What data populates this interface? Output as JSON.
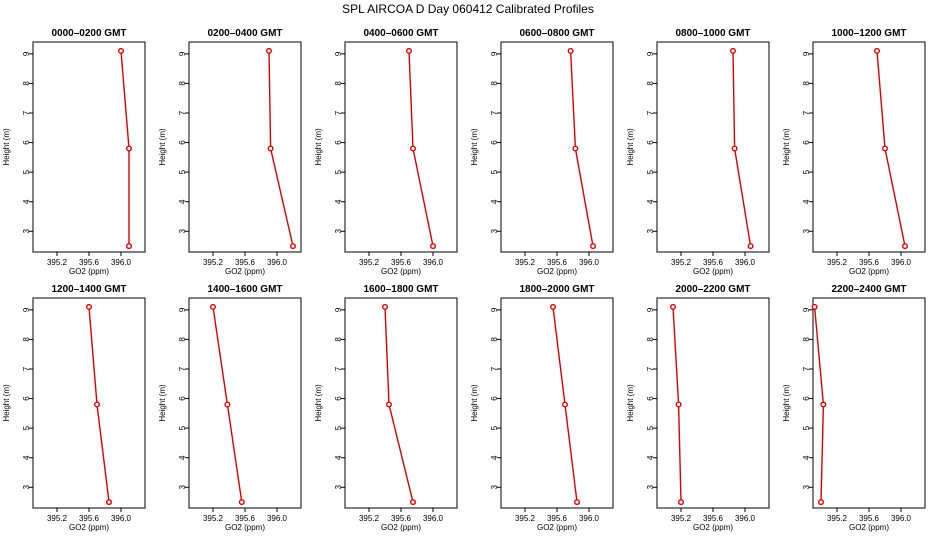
{
  "figure": {
    "title": "SPL AIRCOA D  Day 060412  Calibrated Profiles"
  },
  "chart_data": [
    {
      "type": "line",
      "title": "0000–0200 GMT",
      "xlabel": "GO2 (ppm)",
      "ylabel": "Height (m)",
      "xlim": [
        394.9,
        396.3
      ],
      "ylim": [
        2.3,
        9.4
      ],
      "xticks": [
        395.2,
        395.6,
        396.0
      ],
      "xtick_labels": [
        "395.2",
        "395.6",
        "396.0"
      ],
      "yticks": [
        3,
        4,
        5,
        6,
        7,
        8,
        9
      ],
      "series": [
        {
          "x": [
            396.0,
            396.1,
            396.1
          ],
          "y": [
            9.1,
            5.8,
            2.5
          ],
          "color": "#dd0000"
        }
      ]
    },
    {
      "type": "line",
      "title": "0200–0400 GMT",
      "xlabel": "GO2 (ppm)",
      "ylabel": "Height (m)",
      "xlim": [
        394.9,
        396.3
      ],
      "ylim": [
        2.3,
        9.4
      ],
      "xticks": [
        395.2,
        395.6,
        396.0
      ],
      "xtick_labels": [
        "395.2",
        "395.6",
        "396.0"
      ],
      "yticks": [
        3,
        4,
        5,
        6,
        7,
        8,
        9
      ],
      "series": [
        {
          "x": [
            395.9,
            395.92,
            396.2
          ],
          "y": [
            9.1,
            5.8,
            2.5
          ],
          "color": "#dd0000"
        }
      ]
    },
    {
      "type": "line",
      "title": "0400–0600 GMT",
      "xlabel": "GO2 (ppm)",
      "ylabel": "Height (m)",
      "xlim": [
        394.9,
        396.3
      ],
      "ylim": [
        2.3,
        9.4
      ],
      "xticks": [
        395.2,
        395.6,
        396.0
      ],
      "xtick_labels": [
        "395.2",
        "395.6",
        "396.0"
      ],
      "yticks": [
        3,
        4,
        5,
        6,
        7,
        8,
        9
      ],
      "series": [
        {
          "x": [
            395.7,
            395.75,
            396.0
          ],
          "y": [
            9.1,
            5.8,
            2.5
          ],
          "color": "#dd0000"
        }
      ]
    },
    {
      "type": "line",
      "title": "0600–0800 GMT",
      "xlabel": "GO2 (ppm)",
      "ylabel": "Height (m)",
      "xlim": [
        394.9,
        396.3
      ],
      "ylim": [
        2.3,
        9.4
      ],
      "xticks": [
        395.2,
        395.6,
        396.0
      ],
      "xtick_labels": [
        "395.2",
        "395.6",
        "396.0"
      ],
      "yticks": [
        3,
        4,
        5,
        6,
        7,
        8,
        9
      ],
      "series": [
        {
          "x": [
            395.77,
            395.83,
            396.05
          ],
          "y": [
            9.1,
            5.8,
            2.5
          ],
          "color": "#dd0000"
        }
      ]
    },
    {
      "type": "line",
      "title": "0800–1000 GMT",
      "xlabel": "GO2 (ppm)",
      "ylabel": "Height (m)",
      "xlim": [
        394.9,
        396.3
      ],
      "ylim": [
        2.3,
        9.4
      ],
      "xticks": [
        395.2,
        395.6,
        396.0
      ],
      "xtick_labels": [
        "395.2",
        "395.6",
        "396.0"
      ],
      "yticks": [
        3,
        4,
        5,
        6,
        7,
        8,
        9
      ],
      "series": [
        {
          "x": [
            395.85,
            395.87,
            396.07
          ],
          "y": [
            9.1,
            5.8,
            2.5
          ],
          "color": "#dd0000"
        }
      ]
    },
    {
      "type": "line",
      "title": "1000–1200 GMT",
      "xlabel": "GO2 (ppm)",
      "ylabel": "Height (m)",
      "xlim": [
        394.9,
        396.3
      ],
      "ylim": [
        2.3,
        9.4
      ],
      "xticks": [
        395.2,
        395.6,
        396.0
      ],
      "xtick_labels": [
        "395.2",
        "395.6",
        "396.0"
      ],
      "yticks": [
        3,
        4,
        5,
        6,
        7,
        8,
        9
      ],
      "series": [
        {
          "x": [
            395.7,
            395.8,
            396.05
          ],
          "y": [
            9.1,
            5.8,
            2.5
          ],
          "color": "#dd0000"
        }
      ]
    },
    {
      "type": "line",
      "title": "1200–1400 GMT",
      "xlabel": "GO2 (ppm)",
      "ylabel": "Height (m)",
      "xlim": [
        394.9,
        396.3
      ],
      "ylim": [
        2.3,
        9.4
      ],
      "xticks": [
        395.2,
        395.6,
        396.0
      ],
      "xtick_labels": [
        "395.2",
        "395.6",
        "396.0"
      ],
      "yticks": [
        3,
        4,
        5,
        6,
        7,
        8,
        9
      ],
      "series": [
        {
          "x": [
            395.6,
            395.7,
            395.85
          ],
          "y": [
            9.1,
            5.8,
            2.5
          ],
          "color": "#dd0000"
        }
      ]
    },
    {
      "type": "line",
      "title": "1400–1600 GMT",
      "xlabel": "GO2 (ppm)",
      "ylabel": "Height (m)",
      "xlim": [
        394.9,
        396.3
      ],
      "ylim": [
        2.3,
        9.4
      ],
      "xticks": [
        395.2,
        395.6,
        396.0
      ],
      "xtick_labels": [
        "395.2",
        "395.6",
        "396.0"
      ],
      "yticks": [
        3,
        4,
        5,
        6,
        7,
        8,
        9
      ],
      "series": [
        {
          "x": [
            395.2,
            395.38,
            395.56
          ],
          "y": [
            9.1,
            5.8,
            2.5
          ],
          "color": "#dd0000"
        }
      ]
    },
    {
      "type": "line",
      "title": "1600–1800 GMT",
      "xlabel": "GO2 (ppm)",
      "ylabel": "Height (m)",
      "xlim": [
        394.9,
        396.3
      ],
      "ylim": [
        2.3,
        9.4
      ],
      "xticks": [
        395.2,
        395.6,
        396.0
      ],
      "xtick_labels": [
        "395.2",
        "395.6",
        "396.0"
      ],
      "yticks": [
        3,
        4,
        5,
        6,
        7,
        8,
        9
      ],
      "series": [
        {
          "x": [
            395.4,
            395.45,
            395.75
          ],
          "y": [
            9.1,
            5.8,
            2.5
          ],
          "color": "#dd0000"
        }
      ]
    },
    {
      "type": "line",
      "title": "1800–2000 GMT",
      "xlabel": "GO2 (ppm)",
      "ylabel": "Height (m)",
      "xlim": [
        394.9,
        396.3
      ],
      "ylim": [
        2.3,
        9.4
      ],
      "xticks": [
        395.2,
        395.6,
        396.0
      ],
      "xtick_labels": [
        "395.2",
        "395.6",
        "396.0"
      ],
      "yticks": [
        3,
        4,
        5,
        6,
        7,
        8,
        9
      ],
      "series": [
        {
          "x": [
            395.55,
            395.7,
            395.85
          ],
          "y": [
            9.1,
            5.8,
            2.5
          ],
          "color": "#dd0000"
        }
      ]
    },
    {
      "type": "line",
      "title": "2000–2200 GMT",
      "xlabel": "GO2 (ppm)",
      "ylabel": "Height (m)",
      "xlim": [
        394.9,
        396.3
      ],
      "ylim": [
        2.3,
        9.4
      ],
      "xticks": [
        395.2,
        395.6,
        396.0
      ],
      "xtick_labels": [
        "395.2",
        "395.6",
        "396.0"
      ],
      "yticks": [
        3,
        4,
        5,
        6,
        7,
        8,
        9
      ],
      "series": [
        {
          "x": [
            395.1,
            395.17,
            395.2
          ],
          "y": [
            9.1,
            5.8,
            2.5
          ],
          "color": "#dd0000"
        }
      ]
    },
    {
      "type": "line",
      "title": "2200–2400 GMT",
      "xlabel": "GO2 (ppm)",
      "ylabel": "Height (m)",
      "xlim": [
        394.9,
        396.3
      ],
      "ylim": [
        2.3,
        9.4
      ],
      "xticks": [
        395.2,
        395.6,
        396.0
      ],
      "xtick_labels": [
        "395.2",
        "395.6",
        "396.0"
      ],
      "yticks": [
        3,
        4,
        5,
        6,
        7,
        8,
        9
      ],
      "series": [
        {
          "x": [
            394.92,
            395.03,
            395.0
          ],
          "y": [
            9.1,
            5.8,
            2.5
          ],
          "color": "#dd0000"
        }
      ]
    }
  ]
}
